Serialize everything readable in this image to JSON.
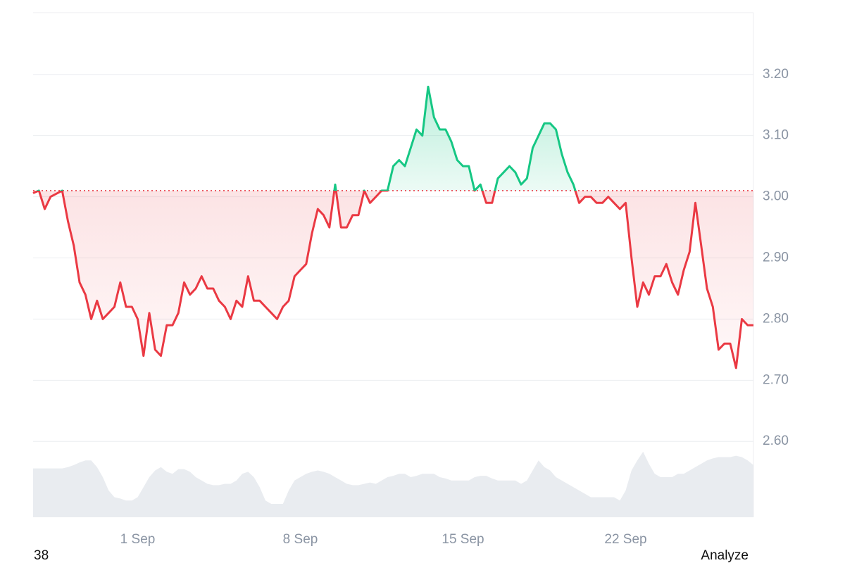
{
  "chart_data": {
    "type": "line",
    "categories": [
      null,
      null,
      null,
      null,
      null,
      null,
      null,
      null,
      null,
      null,
      null,
      null,
      null,
      null,
      null,
      null,
      null,
      null,
      "1 Sep",
      null,
      null,
      null,
      null,
      null,
      null,
      null,
      null,
      null,
      null,
      null,
      null,
      null,
      null,
      null,
      null,
      null,
      null,
      null,
      null,
      null,
      null,
      null,
      null,
      null,
      null,
      null,
      "8 Sep",
      null,
      null,
      null,
      null,
      null,
      null,
      null,
      null,
      null,
      null,
      null,
      null,
      null,
      null,
      null,
      null,
      null,
      null,
      null,
      null,
      null,
      null,
      null,
      null,
      null,
      null,
      null,
      "15 Sep",
      null,
      null,
      null,
      null,
      null,
      null,
      null,
      null,
      null,
      null,
      null,
      null,
      null,
      null,
      null,
      null,
      null,
      null,
      null,
      null,
      null,
      null,
      null,
      null,
      null,
      null,
      null,
      "22 Sep",
      null,
      null,
      null,
      null,
      null,
      null,
      null,
      null,
      null,
      null,
      null,
      null,
      null,
      null,
      null,
      null,
      null,
      null,
      null,
      null,
      null,
      null
    ],
    "values": [
      3.006,
      3.01,
      2.98,
      3.0,
      3.005,
      3.01,
      2.96,
      2.92,
      2.86,
      2.84,
      2.8,
      2.83,
      2.8,
      2.81,
      2.82,
      2.86,
      2.82,
      2.82,
      2.8,
      2.74,
      2.81,
      2.75,
      2.74,
      2.79,
      2.79,
      2.81,
      2.86,
      2.84,
      2.85,
      2.87,
      2.85,
      2.85,
      2.83,
      2.82,
      2.8,
      2.83,
      2.82,
      2.87,
      2.83,
      2.83,
      2.82,
      2.81,
      2.8,
      2.82,
      2.83,
      2.87,
      2.88,
      2.89,
      2.94,
      2.98,
      2.97,
      2.95,
      3.02,
      2.95,
      2.95,
      2.97,
      2.97,
      3.01,
      2.99,
      3.0,
      3.01,
      3.01,
      3.05,
      3.06,
      3.05,
      3.08,
      3.11,
      3.1,
      3.18,
      3.13,
      3.11,
      3.11,
      3.09,
      3.06,
      3.05,
      3.05,
      3.01,
      3.02,
      2.99,
      2.99,
      3.03,
      3.04,
      3.05,
      3.04,
      3.02,
      3.03,
      3.08,
      3.1,
      3.12,
      3.12,
      3.11,
      3.07,
      3.04,
      3.02,
      2.99,
      3.0,
      3.0,
      2.99,
      2.99,
      3.0,
      2.99,
      2.98,
      2.99,
      2.9,
      2.82,
      2.86,
      2.84,
      2.87,
      2.87,
      2.89,
      2.86,
      2.84,
      2.88,
      2.91,
      2.99,
      2.92,
      2.85,
      2.82,
      2.75,
      2.76,
      2.76,
      2.72,
      2.8,
      2.79,
      2.79
    ],
    "color_up": "#16c784",
    "color_down": "#ea3943",
    "baseline": 3.01,
    "ylim": [
      2.476,
      3.301
    ],
    "yticks": [
      {
        "value": 2.6,
        "label": "2.60"
      },
      {
        "value": 2.7,
        "label": "2.70"
      },
      {
        "value": 2.8,
        "label": "2.80"
      },
      {
        "value": 2.9,
        "label": "2.90"
      },
      {
        "value": 3.0,
        "label": "3.00"
      },
      {
        "value": 3.1,
        "label": "3.10"
      },
      {
        "value": 3.2,
        "label": "3.20"
      }
    ],
    "grid": true,
    "volume": {
      "axis": "y2",
      "color": "#e9ecf0",
      "values": [
        73,
        73,
        73,
        73,
        73,
        73,
        75,
        78,
        82,
        85,
        85,
        75,
        60,
        40,
        30,
        28,
        25,
        25,
        30,
        45,
        60,
        70,
        75,
        68,
        65,
        72,
        72,
        68,
        60,
        55,
        50,
        48,
        48,
        50,
        50,
        55,
        65,
        68,
        60,
        45,
        25,
        20,
        20,
        20,
        40,
        55,
        60,
        65,
        68,
        70,
        68,
        65,
        60,
        55,
        50,
        48,
        48,
        50,
        52,
        50,
        55,
        60,
        62,
        65,
        65,
        60,
        62,
        65,
        65,
        65,
        60,
        58,
        55,
        55,
        55,
        55,
        60,
        62,
        62,
        58,
        55,
        55,
        55,
        55,
        50,
        55,
        70,
        85,
        75,
        70,
        60,
        55,
        50,
        45,
        40,
        35,
        30,
        30,
        30,
        30,
        30,
        25,
        40,
        70,
        85,
        98,
        80,
        65,
        60,
        60,
        60,
        65,
        65,
        70,
        75,
        80,
        85,
        88,
        90,
        90,
        90,
        92,
        90,
        85,
        78
      ]
    },
    "y2lim": [
      0,
      100
    ]
  },
  "footer": {
    "left": "38",
    "right": "Analyze"
  }
}
